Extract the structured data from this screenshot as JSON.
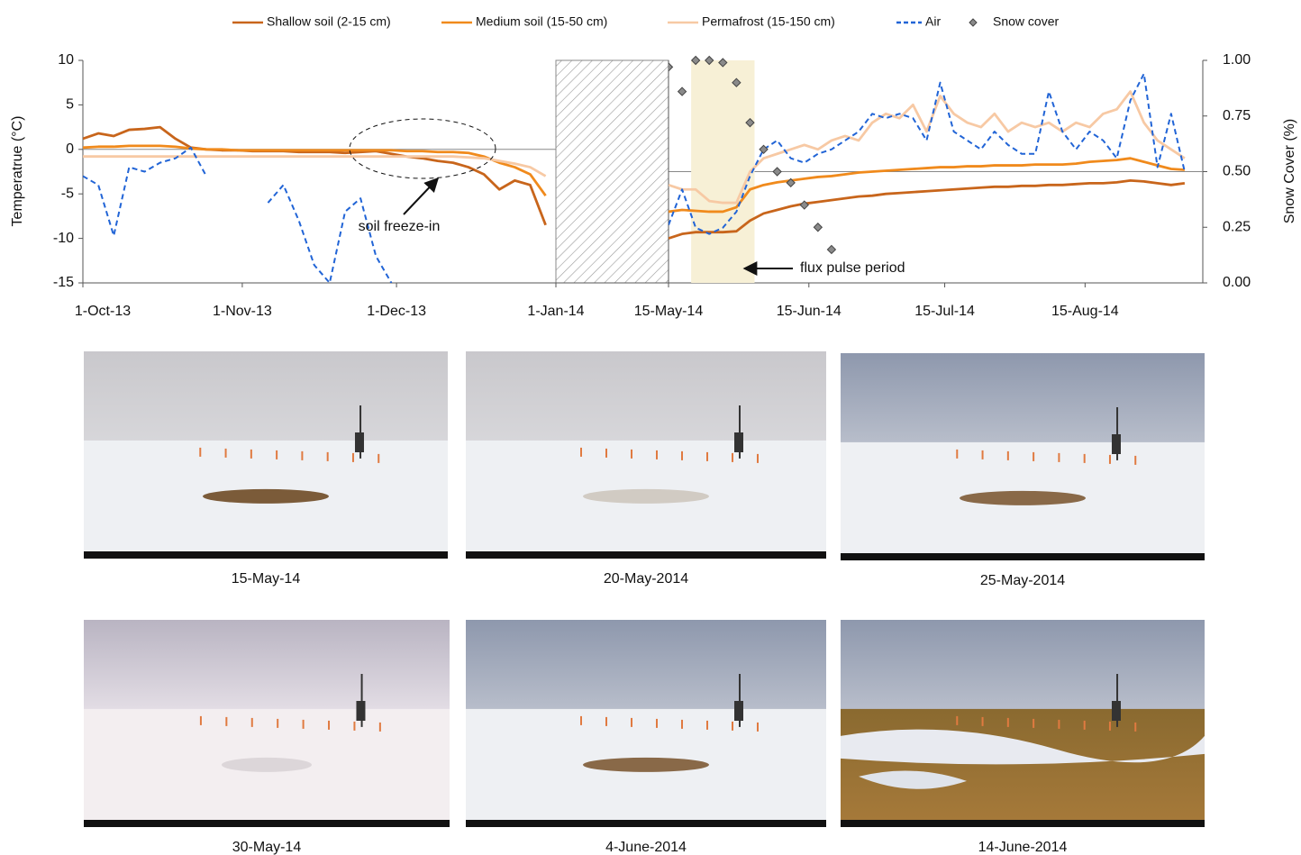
{
  "chart_data": {
    "type": "line",
    "y_label": "Temperatrue (°C)",
    "y2_label": "Snow Cover (%)",
    "ylim": [
      -15,
      10
    ],
    "yticks": [
      -15,
      -10,
      -5,
      0,
      5,
      10
    ],
    "y2lim": [
      0,
      1
    ],
    "y2ticks": [
      {
        "value": 0,
        "label": "0.00"
      },
      {
        "value": 0.25,
        "label": "0.25"
      },
      {
        "value": 0.5,
        "label": "0.50"
      },
      {
        "value": 0.75,
        "label": "0.75"
      },
      {
        "value": 1,
        "label": "1.00"
      }
    ],
    "grid": false,
    "legend": "top",
    "panels": [
      {
        "xlim": [
          "2013-10-01",
          "2014-01-01"
        ],
        "xticks": [
          {
            "value": "2013-10-01",
            "label": "1-Oct-13"
          },
          {
            "value": "2013-11-01",
            "label": "1-Nov-13"
          },
          {
            "value": "2013-12-01",
            "label": "1-Dec-13"
          },
          {
            "value": "2014-01-01",
            "label": "1-Jan-14"
          }
        ],
        "x": [
          "2013-10-01",
          "2013-10-04",
          "2013-10-07",
          "2013-10-10",
          "2013-10-13",
          "2013-10-16",
          "2013-10-19",
          "2013-10-22",
          "2013-10-25",
          "2013-10-28",
          "2013-10-31",
          "2013-11-03",
          "2013-11-06",
          "2013-11-09",
          "2013-11-12",
          "2013-11-15",
          "2013-11-18",
          "2013-11-21",
          "2013-11-24",
          "2013-11-27",
          "2013-11-30",
          "2013-12-03",
          "2013-12-06",
          "2013-12-09",
          "2013-12-12",
          "2013-12-15",
          "2013-12-18",
          "2013-12-21",
          "2013-12-24",
          "2013-12-27",
          "2013-12-30"
        ],
        "annotation": "soil freeze-in"
      },
      {
        "xlim": [
          "2014-05-15",
          "2014-09-10"
        ],
        "xticks": [
          {
            "value": "2014-05-15",
            "label": "15-May-14"
          },
          {
            "value": "2014-06-15",
            "label": "15-Jun-14"
          },
          {
            "value": "2014-07-15",
            "label": "15-Jul-14"
          },
          {
            "value": "2014-08-15",
            "label": "15-Aug-14"
          }
        ],
        "x": [
          "2014-05-15",
          "2014-05-18",
          "2014-05-21",
          "2014-05-24",
          "2014-05-27",
          "2014-05-30",
          "2014-06-02",
          "2014-06-05",
          "2014-06-08",
          "2014-06-11",
          "2014-06-14",
          "2014-06-17",
          "2014-06-20",
          "2014-06-23",
          "2014-06-26",
          "2014-06-29",
          "2014-07-02",
          "2014-07-05",
          "2014-07-08",
          "2014-07-11",
          "2014-07-14",
          "2014-07-17",
          "2014-07-20",
          "2014-07-23",
          "2014-07-26",
          "2014-07-29",
          "2014-08-01",
          "2014-08-04",
          "2014-08-07",
          "2014-08-10",
          "2014-08-13",
          "2014-08-16",
          "2014-08-19",
          "2014-08-22",
          "2014-08-25",
          "2014-08-28",
          "2014-08-31",
          "2014-09-03",
          "2014-09-06"
        ],
        "highlight": [
          "2014-05-20",
          "2014-06-03"
        ],
        "annotation": "flux pulse period"
      }
    ],
    "series": [
      {
        "name": "Shallow soil (2-15 cm)",
        "color": "#c8651b",
        "style": "solid",
        "values": [
          [
            1.2,
            1.8,
            1.5,
            2.2,
            2.3,
            2.5,
            1.2,
            0.2,
            0,
            -0.1,
            -0.1,
            -0.2,
            -0.2,
            -0.2,
            -0.3,
            -0.3,
            -0.3,
            -0.4,
            -0.3,
            -0.2,
            -0.5,
            -0.8,
            -1,
            -1.3,
            -1.5,
            -2,
            -2.8,
            -4.5,
            -3.5,
            -4,
            -8.5
          ],
          [
            -10,
            -9.5,
            -9.3,
            -9.3,
            -9.3,
            -9.2,
            -8,
            -7.2,
            -6.8,
            -6.4,
            -6.1,
            -5.9,
            -5.7,
            -5.5,
            -5.3,
            -5.2,
            -5,
            -4.9,
            -4.8,
            -4.7,
            -4.6,
            -4.5,
            -4.4,
            -4.3,
            -4.2,
            -4.2,
            -4.1,
            -4.1,
            -4,
            -4,
            -3.9,
            -3.8,
            -3.8,
            -3.7,
            -3.5,
            -3.6,
            -3.8,
            -4,
            -3.8
          ]
        ]
      },
      {
        "name": "Medium soil (15-50 cm)",
        "color": "#f08a1c",
        "style": "solid",
        "values": [
          [
            0.2,
            0.3,
            0.3,
            0.4,
            0.4,
            0.4,
            0.3,
            0.1,
            0,
            0,
            -0.1,
            -0.1,
            -0.1,
            -0.1,
            -0.1,
            -0.1,
            -0.1,
            -0.1,
            -0.1,
            -0.1,
            -0.1,
            -0.2,
            -0.2,
            -0.3,
            -0.3,
            -0.4,
            -0.8,
            -1.5,
            -2,
            -2.8,
            -5.2
          ],
          [
            -7,
            -6.8,
            -6.9,
            -7,
            -7,
            -6.5,
            -4.5,
            -4,
            -3.7,
            -3.5,
            -3.3,
            -3.1,
            -3,
            -2.8,
            -2.6,
            -2.5,
            -2.4,
            -2.3,
            -2.2,
            -2.1,
            -2,
            -2,
            -1.9,
            -1.9,
            -1.8,
            -1.8,
            -1.8,
            -1.7,
            -1.7,
            -1.7,
            -1.6,
            -1.4,
            -1.3,
            -1.2,
            -1,
            -1.4,
            -1.8,
            -2.2,
            -2.3
          ]
        ]
      },
      {
        "name": "Permafrost (15-150 cm)",
        "color": "#f7c9a4",
        "style": "solid",
        "values": [
          [
            -0.8,
            -0.8,
            -0.8,
            -0.8,
            -0.8,
            -0.8,
            -0.8,
            -0.8,
            -0.8,
            -0.8,
            -0.8,
            -0.8,
            -0.8,
            -0.8,
            -0.8,
            -0.8,
            -0.8,
            -0.8,
            -0.8,
            -0.8,
            -0.8,
            -0.8,
            -0.8,
            -0.8,
            -0.8,
            -0.9,
            -1,
            -1.3,
            -1.6,
            -2,
            -3
          ],
          [
            -4,
            -4.5,
            -4.5,
            -5.8,
            -6,
            -6,
            -2.5,
            -1,
            -0.5,
            0,
            0.5,
            0,
            1,
            1.5,
            1,
            3,
            4,
            3.5,
            5,
            2,
            6,
            4,
            3,
            2.5,
            4,
            2,
            3,
            2.5,
            3,
            2,
            3,
            2.5,
            4,
            4.5,
            6.5,
            3,
            1,
            0,
            -1
          ]
        ]
      },
      {
        "name": "Air",
        "color": "#2164d6",
        "style": "dashed",
        "values": [
          [
            -3,
            -4,
            -9.7,
            -2,
            -2.5,
            -1.5,
            -1,
            0.2,
            -3,
            null,
            null,
            null,
            -6,
            -4,
            -8,
            -13,
            -15,
            -7,
            -5.5,
            -12,
            -15,
            null,
            null,
            null,
            null,
            null,
            null,
            null,
            null,
            null,
            null
          ],
          [
            -8.5,
            -4.5,
            -8.8,
            -9.5,
            -8.8,
            -7,
            -3,
            0,
            1,
            -1,
            -1.5,
            -0.5,
            0,
            1,
            2,
            4,
            3.5,
            4,
            3.5,
            1,
            7.5,
            2,
            1,
            0,
            2,
            0.5,
            -0.5,
            -0.5,
            6.5,
            2,
            0,
            2,
            1,
            -1,
            5.5,
            8.5,
            -2,
            4,
            -2.5
          ]
        ]
      },
      {
        "name": "Snow cover",
        "color": "#8a8a8a",
        "style": "markers",
        "axis": "y2",
        "values": [
          [
            null,
            null,
            null,
            null,
            null,
            null,
            null,
            null,
            null,
            null,
            null,
            null,
            null,
            null,
            null,
            null,
            null,
            null,
            null,
            null,
            null,
            null,
            null,
            null,
            null,
            null,
            null,
            null,
            null,
            null,
            null
          ],
          [
            0.97,
            0.86,
            1,
            1,
            0.99,
            0.9,
            0.72,
            0.6,
            0.5,
            0.45,
            0.35,
            0.25,
            0.15,
            null,
            null,
            null,
            null,
            null,
            null,
            null,
            null,
            null,
            null,
            null,
            null,
            null,
            null,
            null,
            null,
            null,
            null,
            null,
            null,
            null,
            null,
            null,
            null,
            null,
            null
          ]
        ]
      }
    ]
  },
  "photos": [
    {
      "caption": "15-May-14"
    },
    {
      "caption": "20-May-2014"
    },
    {
      "caption": "25-May-2014"
    },
    {
      "caption": "30-May-14"
    },
    {
      "caption": "4-June-2014"
    },
    {
      "caption": "14-June-2014"
    }
  ]
}
